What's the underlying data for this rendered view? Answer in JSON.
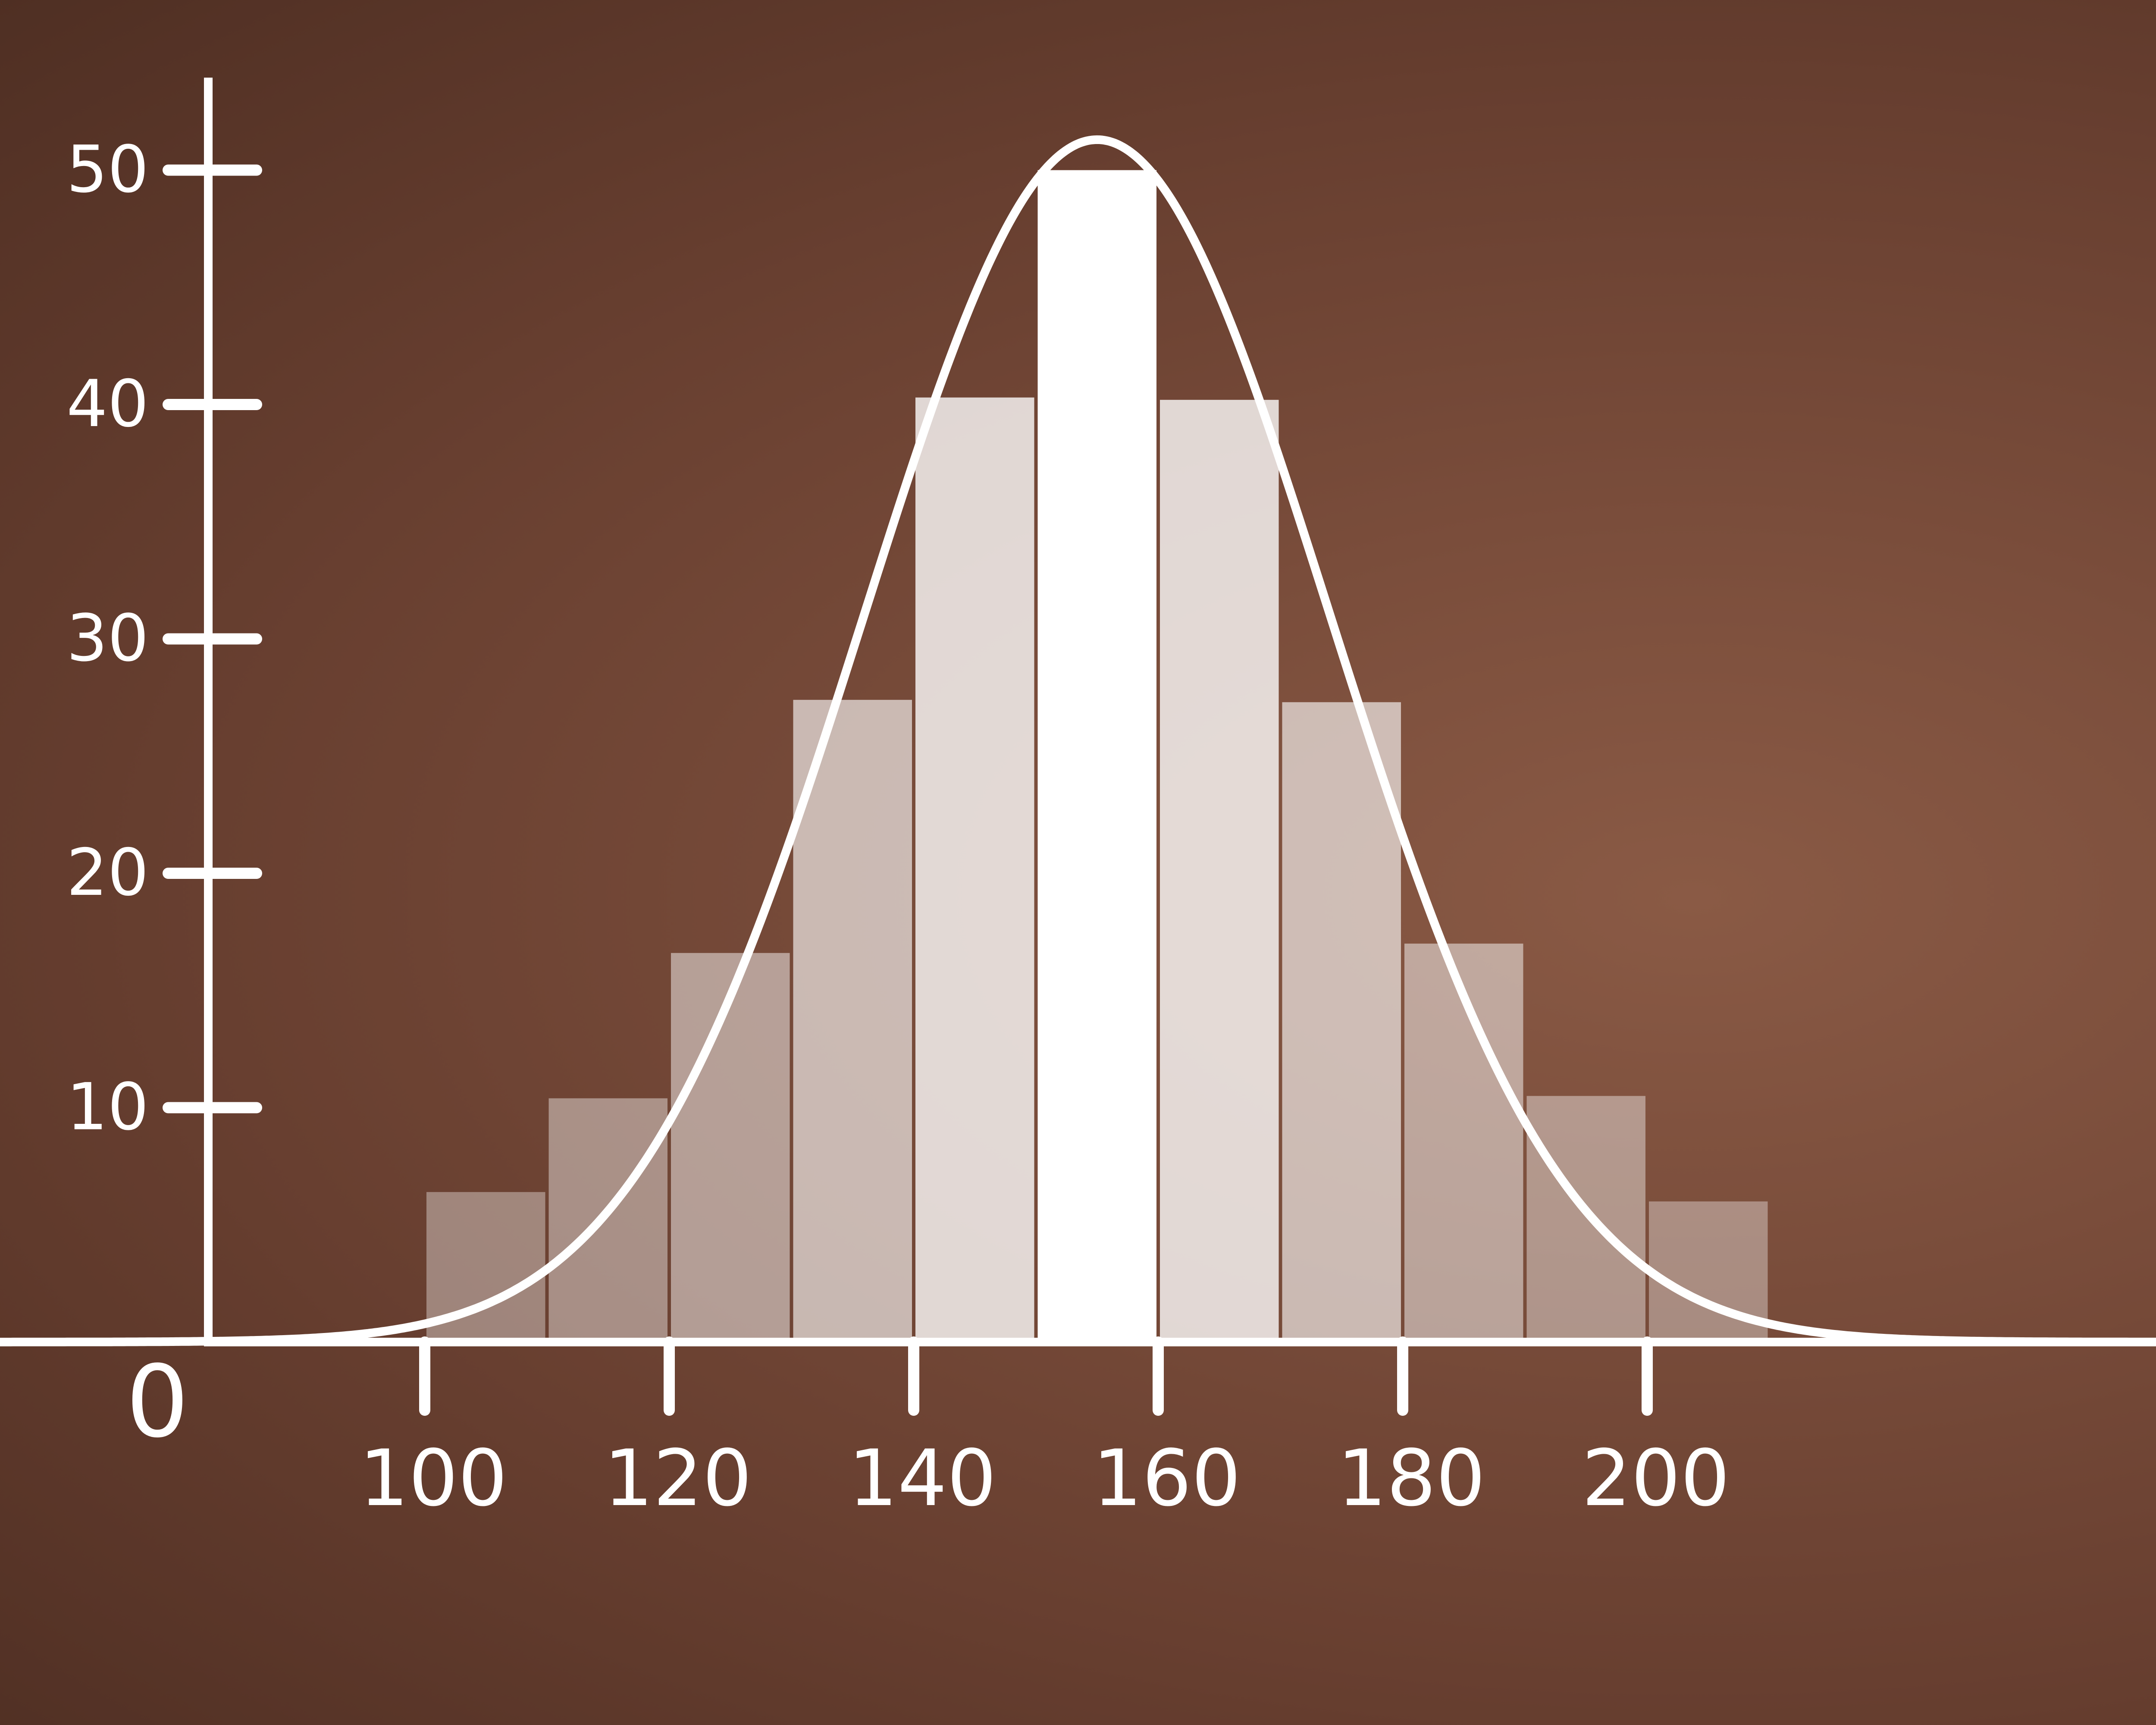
{
  "chart_data": {
    "type": "bar",
    "title": "",
    "xlabel": "",
    "ylabel": "",
    "grid": false,
    "legend": "none",
    "xlim": [
      80,
      250
    ],
    "ylim": [
      0,
      50
    ],
    "x_ticks": [
      "100",
      "120",
      "140",
      "160",
      "180",
      "200"
    ],
    "y_ticks": [
      "10",
      "20",
      "30",
      "40",
      "50"
    ],
    "origin_label": "0",
    "bins": [
      {
        "x0": 100,
        "x1": 110,
        "value": 6.4
      },
      {
        "x0": 110,
        "x1": 120,
        "value": 10.4
      },
      {
        "x0": 120,
        "x1": 130,
        "value": 16.6
      },
      {
        "x0": 130,
        "x1": 140,
        "value": 27.4
      },
      {
        "x0": 140,
        "x1": 150,
        "value": 40.3
      },
      {
        "x0": 150,
        "x1": 160,
        "value": 50.0
      },
      {
        "x0": 160,
        "x1": 170,
        "value": 40.2
      },
      {
        "x0": 170,
        "x1": 180,
        "value": 27.3
      },
      {
        "x0": 180,
        "x1": 190,
        "value": 17.0
      },
      {
        "x0": 190,
        "x1": 200,
        "value": 10.5
      },
      {
        "x0": 200,
        "x1": 210,
        "value": 6.0
      }
    ],
    "curve": {
      "type": "normal",
      "mean": 155,
      "peak": 51.3,
      "sd": 19
    }
  },
  "colors": {
    "background": "#6b4131",
    "ink": "#ffffff"
  }
}
